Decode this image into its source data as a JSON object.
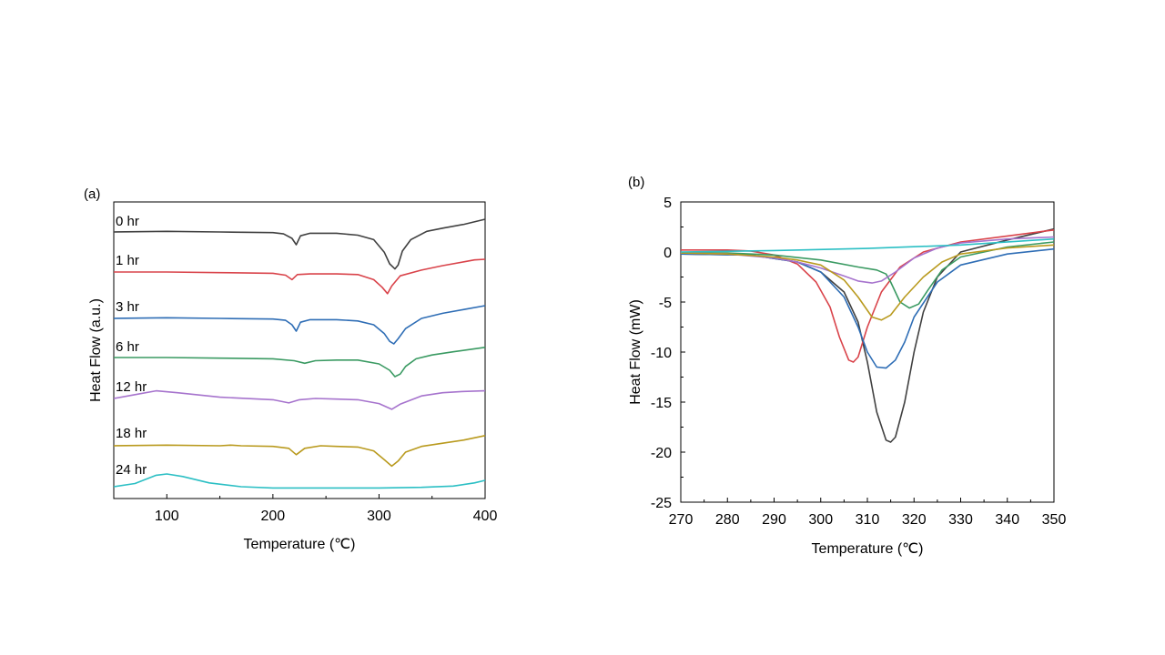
{
  "chart_data": [
    {
      "type": "line",
      "panel_label": "(a)",
      "xlabel": "Temperature (℃)",
      "ylabel": "Heat Flow (a.u.)",
      "xlim": [
        50,
        400
      ],
      "xticks": [
        100,
        200,
        300,
        400
      ],
      "y_tick_labels_shown": false,
      "grid": false,
      "legend": "inline labels above each trace",
      "series": [
        {
          "name": "0 hr",
          "color": "#404040",
          "x": [
            50,
            100,
            150,
            200,
            210,
            218,
            222,
            226,
            235,
            260,
            280,
            295,
            305,
            310,
            315,
            318,
            322,
            330,
            345,
            360,
            380,
            400
          ],
          "y": [
            0.0,
            0.05,
            0.0,
            -0.05,
            -0.15,
            -0.5,
            -1.0,
            -0.3,
            -0.1,
            -0.1,
            -0.25,
            -0.6,
            -1.6,
            -2.5,
            -2.9,
            -2.6,
            -1.5,
            -0.6,
            0.05,
            0.3,
            0.6,
            1.0
          ]
        },
        {
          "name": "1 hr",
          "color": "#d9434a",
          "x": [
            50,
            100,
            150,
            200,
            212,
            218,
            223,
            235,
            260,
            280,
            295,
            303,
            308,
            312,
            320,
            340,
            360,
            380,
            390,
            400
          ],
          "y": [
            0.0,
            0.0,
            -0.05,
            -0.1,
            -0.25,
            -0.6,
            -0.2,
            -0.15,
            -0.15,
            -0.2,
            -0.6,
            -1.2,
            -1.7,
            -1.1,
            -0.3,
            0.15,
            0.5,
            0.8,
            0.95,
            1.0
          ]
        },
        {
          "name": "3 hr",
          "color": "#2e6db5",
          "x": [
            50,
            100,
            150,
            200,
            212,
            218,
            222,
            226,
            235,
            260,
            280,
            295,
            305,
            310,
            314,
            318,
            325,
            340,
            360,
            380,
            400
          ],
          "y": [
            0.0,
            0.05,
            0.0,
            -0.05,
            -0.15,
            -0.5,
            -1.0,
            -0.3,
            -0.1,
            -0.1,
            -0.2,
            -0.5,
            -1.2,
            -1.8,
            -2.0,
            -1.6,
            -0.8,
            0.0,
            0.4,
            0.7,
            1.0
          ]
        },
        {
          "name": "6 hr",
          "color": "#3a9a62",
          "x": [
            50,
            100,
            150,
            200,
            220,
            230,
            240,
            260,
            280,
            300,
            310,
            315,
            320,
            325,
            335,
            350,
            370,
            400
          ],
          "y": [
            0.0,
            0.0,
            -0.05,
            -0.1,
            -0.25,
            -0.45,
            -0.25,
            -0.2,
            -0.2,
            -0.5,
            -1.0,
            -1.5,
            -1.3,
            -0.7,
            -0.1,
            0.2,
            0.45,
            0.8
          ]
        },
        {
          "name": "12 hr",
          "color": "#a673cd",
          "x": [
            50,
            70,
            90,
            110,
            150,
            200,
            215,
            225,
            240,
            260,
            280,
            300,
            312,
            320,
            340,
            360,
            380,
            400
          ],
          "y": [
            0.0,
            0.3,
            0.6,
            0.45,
            0.1,
            -0.1,
            -0.35,
            -0.1,
            0.0,
            -0.05,
            -0.1,
            -0.4,
            -0.85,
            -0.45,
            0.2,
            0.45,
            0.55,
            0.6
          ]
        },
        {
          "name": "18 hr",
          "color": "#b99a1e",
          "x": [
            50,
            100,
            150,
            160,
            170,
            200,
            215,
            222,
            230,
            245,
            260,
            280,
            295,
            305,
            312,
            318,
            325,
            340,
            360,
            380,
            400
          ],
          "y": [
            0.0,
            0.05,
            0.0,
            0.05,
            0.0,
            -0.05,
            -0.2,
            -0.7,
            -0.2,
            0.0,
            -0.05,
            -0.1,
            -0.4,
            -1.1,
            -1.6,
            -1.2,
            -0.5,
            -0.05,
            0.2,
            0.45,
            0.8
          ]
        },
        {
          "name": "24 hr",
          "color": "#2bbfc4",
          "x": [
            50,
            70,
            90,
            100,
            115,
            140,
            170,
            200,
            250,
            300,
            340,
            370,
            390,
            400
          ],
          "y": [
            0.0,
            0.25,
            0.9,
            1.0,
            0.8,
            0.3,
            0.0,
            -0.1,
            -0.1,
            -0.1,
            -0.05,
            0.05,
            0.3,
            0.5
          ]
        }
      ]
    },
    {
      "type": "line",
      "panel_label": "(b)",
      "xlabel": "Temperature (℃)",
      "ylabel": "Heat Flow (mW)",
      "xlim": [
        270,
        350
      ],
      "ylim": [
        -25,
        5
      ],
      "xticks": [
        270,
        280,
        290,
        300,
        310,
        320,
        330,
        340,
        350
      ],
      "yticks": [
        5,
        0,
        -5,
        -10,
        -15,
        -20,
        -25
      ],
      "grid": false,
      "legend": "none",
      "series": [
        {
          "color": "#404040",
          "x": [
            270,
            285,
            295,
            300,
            305,
            308,
            310,
            312,
            314,
            315,
            316,
            318,
            320,
            322,
            325,
            330,
            340,
            350
          ],
          "y": [
            -0.2,
            -0.3,
            -1.0,
            -2.0,
            -4.0,
            -7.0,
            -11.0,
            -16.0,
            -18.8,
            -19.0,
            -18.5,
            -15.0,
            -10.0,
            -6.0,
            -2.5,
            0.0,
            1.2,
            2.3
          ]
        },
        {
          "color": "#d9434a",
          "x": [
            270,
            280,
            285,
            290,
            295,
            299,
            302,
            304,
            306,
            307,
            308,
            310,
            313,
            317,
            322,
            330,
            340,
            350
          ],
          "y": [
            0.2,
            0.2,
            0.1,
            -0.3,
            -1.2,
            -3.0,
            -5.5,
            -8.5,
            -10.8,
            -11.0,
            -10.5,
            -7.5,
            -4.0,
            -1.5,
            0.0,
            1.0,
            1.6,
            2.2
          ]
        },
        {
          "color": "#2e6db5",
          "x": [
            270,
            285,
            295,
            300,
            305,
            308,
            310,
            312,
            314,
            316,
            318,
            320,
            325,
            330,
            340,
            350
          ],
          "y": [
            -0.2,
            -0.3,
            -1.0,
            -2.0,
            -4.5,
            -7.5,
            -10.0,
            -11.5,
            -11.6,
            -10.8,
            -9.0,
            -6.5,
            -3.0,
            -1.3,
            -0.2,
            0.3
          ]
        },
        {
          "color": "#3a9a62",
          "x": [
            270,
            280,
            290,
            300,
            308,
            312,
            314,
            315,
            317,
            319,
            321,
            323,
            326,
            330,
            340,
            350
          ],
          "y": [
            -0.1,
            -0.1,
            -0.3,
            -0.8,
            -1.5,
            -1.8,
            -2.2,
            -3.0,
            -5.0,
            -5.6,
            -5.2,
            -3.8,
            -1.8,
            -0.5,
            0.5,
            1.0
          ]
        },
        {
          "color": "#a673cd",
          "x": [
            270,
            280,
            290,
            295,
            300,
            305,
            308,
            311,
            313,
            316,
            320,
            325,
            330,
            340,
            350
          ],
          "y": [
            -0.1,
            -0.2,
            -0.6,
            -1.0,
            -1.6,
            -2.4,
            -2.9,
            -3.1,
            -2.9,
            -2.0,
            -0.6,
            0.4,
            0.9,
            1.3,
            1.5
          ]
        },
        {
          "color": "#b99a1e",
          "x": [
            270,
            280,
            290,
            295,
            300,
            305,
            308,
            311,
            313,
            315,
            318,
            322,
            326,
            330,
            340,
            350
          ],
          "y": [
            -0.1,
            -0.2,
            -0.5,
            -0.8,
            -1.3,
            -2.8,
            -4.5,
            -6.5,
            -6.8,
            -6.3,
            -4.5,
            -2.5,
            -1.0,
            -0.2,
            0.4,
            0.7
          ]
        },
        {
          "color": "#2bbfc4",
          "x": [
            270,
            290,
            310,
            330,
            350
          ],
          "y": [
            0.0,
            0.15,
            0.35,
            0.7,
            1.3
          ]
        }
      ]
    }
  ]
}
